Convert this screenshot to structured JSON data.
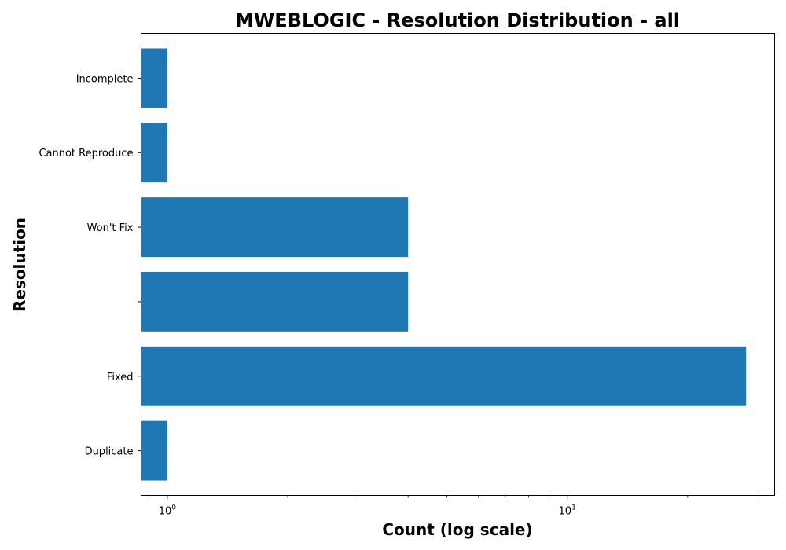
{
  "chart_data": {
    "type": "bar",
    "orientation": "horizontal",
    "title": "MWEBLOGIC - Resolution Distribution - all",
    "xlabel": "Count (log scale)",
    "ylabel": "Resolution",
    "x_scale": "log",
    "xlim": [
      0.86,
      33
    ],
    "x_ticks": [
      {
        "value": 1,
        "base": "10",
        "exp": "0"
      },
      {
        "value": 10,
        "base": "10",
        "exp": "1"
      }
    ],
    "categories": [
      "Duplicate",
      "Fixed",
      "",
      "Won't Fix",
      "Cannot Reproduce",
      "Incomplete"
    ],
    "values": [
      1,
      28,
      4,
      4,
      1,
      1
    ],
    "bar_color": "#1f77b4",
    "grid": false,
    "legend": "none"
  }
}
